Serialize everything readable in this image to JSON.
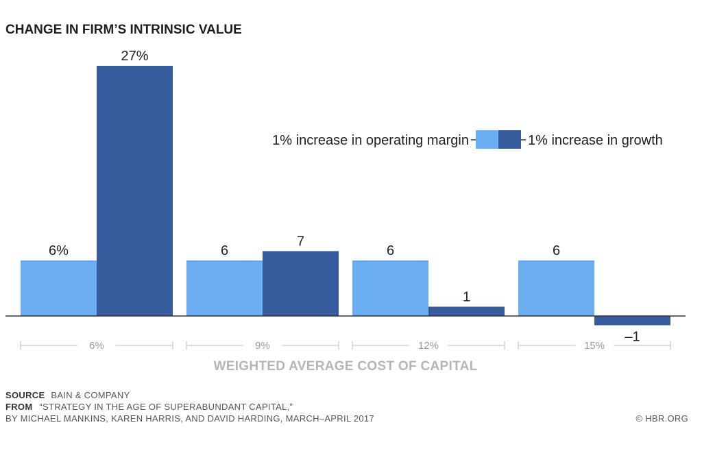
{
  "chart_data": {
    "type": "bar",
    "title": "CHANGE IN FIRM’S INTRINSIC VALUE",
    "xlabel": "WEIGHTED AVERAGE COST OF CAPITAL",
    "ylabel": "",
    "categories": [
      "6%",
      "9%",
      "12%",
      "15%"
    ],
    "ylim": [
      -1,
      27
    ],
    "legend_position": "right",
    "series": [
      {
        "name": "1% increase in operating margin",
        "color": "#6aadf0",
        "values": [
          6,
          6,
          6,
          6
        ],
        "labels": [
          "6%",
          "6",
          "6",
          "6"
        ]
      },
      {
        "name": "1% increase in growth",
        "color": "#365c9e",
        "values": [
          27,
          7,
          1,
          -1
        ],
        "labels": [
          "27%",
          "7",
          "1",
          "–1"
        ]
      }
    ]
  },
  "footer": {
    "source_label": "SOURCE",
    "source_text": "BAIN & COMPANY",
    "from_label": "FROM",
    "from_text": "“STRATEGY IN THE AGE OF SUPERABUNDANT CAPITAL,”",
    "byline": "BY MICHAEL MANKINS, KAREN HARRIS, AND DAVID HARDING, MARCH–APRIL 2017",
    "copyright": "© HBR.ORG"
  }
}
